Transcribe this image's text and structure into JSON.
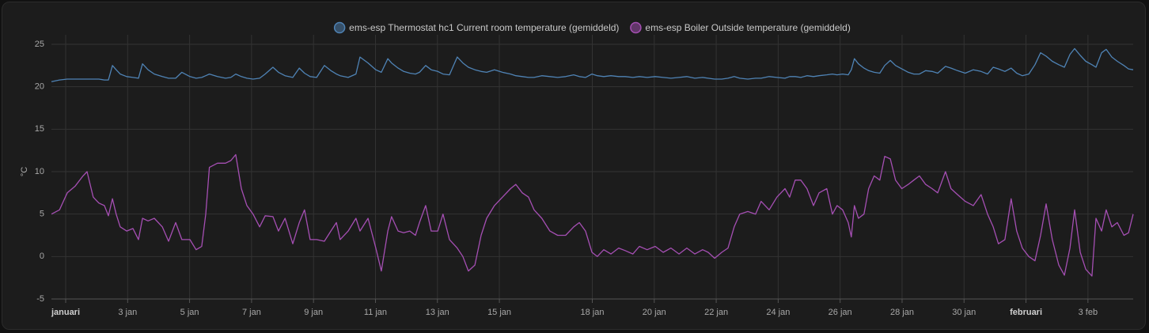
{
  "chart_data": {
    "type": "line",
    "y_label": "°C",
    "ylim": [
      -5,
      25
    ],
    "yticks": [
      -5,
      0,
      5,
      10,
      15,
      20,
      25
    ],
    "xlim": [
      0.54,
      35.46
    ],
    "xticks": [
      {
        "value": 1,
        "label": "januari"
      },
      {
        "value": 3,
        "label": "3 jan"
      },
      {
        "value": 5,
        "label": "5 jan"
      },
      {
        "value": 7,
        "label": "7 jan"
      },
      {
        "value": 9,
        "label": "9 jan"
      },
      {
        "value": 11,
        "label": "11 jan"
      },
      {
        "value": 13,
        "label": "13 jan"
      },
      {
        "value": 15,
        "label": "15 jan"
      },
      {
        "value": 18,
        "label": "18 jan"
      },
      {
        "value": 20,
        "label": "20 jan"
      },
      {
        "value": 22,
        "label": "22 jan"
      },
      {
        "value": 24,
        "label": "24 jan"
      },
      {
        "value": 26,
        "label": "26 jan"
      },
      {
        "value": 28,
        "label": "28 jan"
      },
      {
        "value": 30,
        "label": "30 jan"
      },
      {
        "value": 32,
        "label": "februari"
      },
      {
        "value": 34,
        "label": "3 feb"
      }
    ],
    "grid": true,
    "legend": "top",
    "x": [
      0.54,
      0.8,
      1.05,
      1.31,
      1.56,
      1.69,
      1.89,
      2.07,
      2.25,
      2.38,
      2.51,
      2.63,
      2.76,
      2.97,
      3.17,
      3.35,
      3.48,
      3.66,
      3.86,
      4.12,
      4.32,
      4.55,
      4.75,
      5.01,
      5.21,
      5.39,
      5.52,
      5.64,
      5.9,
      6.16,
      6.33,
      6.49,
      6.67,
      6.85,
      7.05,
      7.26,
      7.44,
      7.69,
      7.87,
      8.08,
      8.33,
      8.54,
      8.71,
      8.89,
      9.1,
      9.35,
      9.56,
      9.74,
      9.86,
      10.12,
      10.37,
      10.5,
      10.76,
      11.01,
      11.19,
      11.4,
      11.52,
      11.73,
      11.91,
      12.11,
      12.29,
      12.42,
      12.62,
      12.8,
      13.01,
      13.18,
      13.39,
      13.64,
      13.82,
      14.0,
      14.21,
      14.41,
      14.59,
      14.84,
      15.1,
      15.36,
      15.53,
      15.74,
      15.94,
      16.12,
      16.37,
      16.63,
      16.88,
      17.14,
      17.4,
      17.58,
      17.78,
      17.99,
      18.16,
      18.37,
      18.6,
      18.85,
      19.06,
      19.31,
      19.52,
      19.77,
      20.03,
      20.29,
      20.54,
      20.8,
      21.05,
      21.31,
      21.56,
      21.74,
      21.95,
      22.18,
      22.38,
      22.58,
      22.76,
      23.02,
      23.27,
      23.45,
      23.71,
      23.96,
      24.22,
      24.37,
      24.55,
      24.73,
      24.93,
      25.14,
      25.32,
      25.57,
      25.75,
      25.9,
      26.08,
      26.26,
      26.36,
      26.46,
      26.59,
      26.77,
      26.92,
      27.1,
      27.28,
      27.44,
      27.62,
      27.79,
      27.99,
      28.2,
      28.38,
      28.56,
      28.76,
      28.97,
      29.15,
      29.4,
      29.58,
      29.79,
      30.04,
      30.3,
      30.55,
      30.76,
      30.94,
      31.11,
      31.32,
      31.52,
      31.7,
      31.88,
      32.09,
      32.29,
      32.47,
      32.65,
      32.85,
      33.06,
      33.24,
      33.42,
      33.57,
      33.75,
      33.93,
      34.13,
      34.26,
      34.44,
      34.59,
      34.77,
      34.95,
      35.16,
      35.31,
      35.46
    ],
    "series": [
      {
        "name": "ems-esp Thermostat hc1 Current room temperature (gemiddeld)",
        "color": "#4f83b5",
        "values": [
          20.6,
          20.8,
          20.9,
          20.9,
          20.9,
          20.9,
          20.9,
          20.9,
          20.8,
          20.8,
          22.5,
          22,
          21.5,
          21.2,
          21.1,
          21,
          22.7,
          22,
          21.5,
          21.2,
          21,
          21,
          21.7,
          21.2,
          21,
          21.1,
          21.3,
          21.5,
          21.2,
          21,
          21.1,
          21.5,
          21.2,
          21,
          20.9,
          21,
          21.5,
          22.3,
          21.7,
          21.3,
          21.1,
          22.2,
          21.6,
          21.2,
          21.1,
          22.5,
          21.9,
          21.5,
          21.3,
          21.1,
          21.5,
          23.5,
          22.8,
          22,
          21.7,
          23.3,
          22.8,
          22.2,
          21.8,
          21.6,
          21.5,
          21.7,
          22.5,
          22,
          21.8,
          21.5,
          21.4,
          23.5,
          22.8,
          22.3,
          22,
          21.8,
          21.7,
          22,
          21.7,
          21.5,
          21.3,
          21.2,
          21.1,
          21.1,
          21.3,
          21.2,
          21.1,
          21.2,
          21.4,
          21.2,
          21.1,
          21.5,
          21.3,
          21.2,
          21.3,
          21.2,
          21.2,
          21.1,
          21.2,
          21.1,
          21.2,
          21.1,
          21,
          21.1,
          21.2,
          21,
          21.1,
          21,
          20.9,
          20.9,
          21,
          21.2,
          21,
          20.9,
          21,
          21,
          21.2,
          21.1,
          21,
          21.2,
          21.2,
          21.1,
          21.3,
          21.2,
          21.3,
          21.4,
          21.5,
          21.4,
          21.5,
          21.4,
          22,
          23.3,
          22.7,
          22.2,
          21.9,
          21.7,
          21.6,
          22.5,
          23.1,
          22.5,
          22.1,
          21.7,
          21.5,
          21.5,
          21.9,
          21.8,
          21.6,
          22.4,
          22.2,
          21.9,
          21.6,
          22,
          21.8,
          21.5,
          22.3,
          22.1,
          21.8,
          22.2,
          21.6,
          21.3,
          21.5,
          22.6,
          24,
          23.6,
          23,
          22.6,
          22.3,
          23.8,
          24.5,
          23.7,
          23,
          22.6,
          22.3,
          24,
          24.4,
          23.5,
          23,
          22.5,
          22.1,
          22
        ]
      },
      {
        "name": "ems-esp Boiler Outside temperature (gemiddeld)",
        "color": "#a54fb3",
        "values": [
          5,
          5.5,
          7.5,
          8.3,
          9.5,
          10,
          7,
          6.3,
          6,
          4.8,
          6.8,
          5,
          3.5,
          3,
          3.3,
          2,
          4.5,
          4.2,
          4.5,
          3.5,
          1.8,
          4,
          2,
          2,
          0.8,
          1.2,
          5,
          10.5,
          11,
          11,
          11.3,
          12,
          8,
          6,
          5,
          3.5,
          4.8,
          4.7,
          3,
          4.5,
          1.5,
          4,
          5.5,
          2,
          2,
          1.8,
          3,
          4,
          2,
          3,
          4.5,
          3,
          4.5,
          1,
          -1.7,
          3,
          4.7,
          3,
          2.8,
          3,
          2.5,
          4,
          6,
          3,
          3,
          5,
          2,
          1,
          0,
          -1.7,
          -1,
          2.5,
          4.5,
          6,
          7,
          8,
          8.5,
          7.5,
          7,
          5.5,
          4.5,
          3,
          2.5,
          2.5,
          3.5,
          4,
          3,
          0.5,
          0,
          0.8,
          0.3,
          1,
          0.7,
          0.3,
          1.2,
          0.8,
          1.2,
          0.5,
          1,
          0.3,
          1,
          0.3,
          0.8,
          0.5,
          -0.2,
          0.5,
          1,
          3.5,
          5,
          5.3,
          5,
          6.5,
          5.5,
          7,
          8,
          7,
          9,
          9,
          8,
          6,
          7.5,
          8,
          5,
          6,
          5.5,
          4,
          2.3,
          6,
          4.5,
          5,
          8,
          9.5,
          9,
          11.8,
          11.5,
          9,
          8,
          8.5,
          9,
          9.5,
          8.5,
          8,
          7.5,
          10,
          8,
          7.3,
          6.5,
          6,
          7.3,
          5,
          3.5,
          1.5,
          2,
          6.8,
          3,
          1,
          0,
          -0.5,
          2.5,
          6.2,
          2,
          -1,
          -2.2,
          1,
          5.5,
          0.5,
          -1.5,
          -2.3,
          4.5,
          3,
          5.5,
          3.5,
          4,
          2.5,
          2.8,
          5
        ]
      }
    ]
  }
}
